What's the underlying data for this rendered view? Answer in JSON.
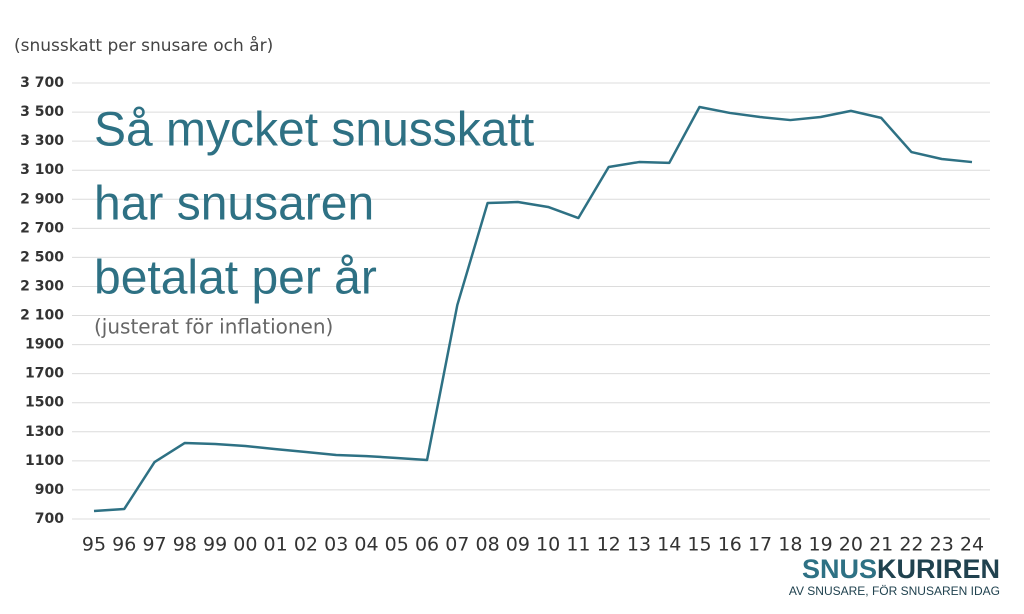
{
  "chart_data": {
    "type": "line",
    "title": [
      "Så mycket snusskatt",
      "har snusaren",
      "betalat per år"
    ],
    "subtitle": "(justerat för inflationen)",
    "y_label": "(snusskatt per snusare och år)",
    "categories": [
      "95",
      "96",
      "97",
      "98",
      "99",
      "00",
      "01",
      "02",
      "03",
      "04",
      "05",
      "06",
      "07",
      "08",
      "09",
      "10",
      "11",
      "12",
      "13",
      "14",
      "15",
      "16",
      "17",
      "18",
      "19",
      "20",
      "21",
      "22",
      "23",
      "24"
    ],
    "series": [
      {
        "name": "snusskatt",
        "color": "#2e7184",
        "values": [
          755,
          769,
          1092,
          1223,
          1216,
          1202,
          1181,
          1161,
          1140,
          1133,
          1120,
          1106,
          2172,
          2874,
          2881,
          2847,
          2771,
          3122,
          3156,
          3150,
          3535,
          3494,
          3466,
          3445,
          3466,
          3508,
          3460,
          3225,
          3177,
          3156
        ]
      }
    ],
    "ylim": [
      700,
      3700
    ],
    "yticks": [
      700,
      900,
      1100,
      1300,
      1500,
      1700,
      1900,
      {
        "value": 2100,
        "label": "2 100"
      },
      {
        "value": 2300,
        "label": "2 300"
      },
      {
        "value": 2500,
        "label": "2 500"
      },
      {
        "value": 2700,
        "label": "2 700"
      },
      {
        "value": 2900,
        "label": "2 900"
      },
      {
        "value": 3100,
        "label": "3 100"
      },
      {
        "value": 3300,
        "label": "3 300"
      },
      {
        "value": 3500,
        "label": "3 500"
      },
      {
        "value": 3700,
        "label": "3 700"
      }
    ],
    "grid": true
  },
  "logo": {
    "parts": [
      "SNUS",
      "KURIREN"
    ],
    "tagline": "AV SNUSARE, FÖR SNUSAREN IDAG"
  }
}
